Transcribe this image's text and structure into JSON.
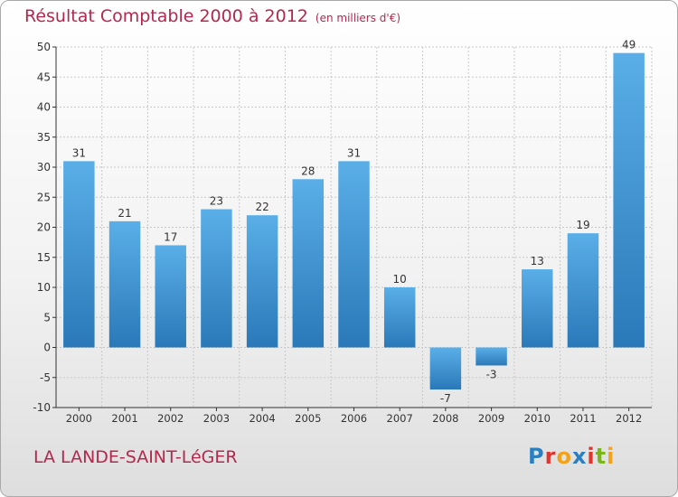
{
  "title": "Résultat Comptable 2000 à 2012",
  "subtitle": "(en milliers d'€)",
  "commune": "LA LANDE-SAINT-LéGER",
  "logo": {
    "text": "Proxiti",
    "colors": [
      "#2a7fc1",
      "#e2342d",
      "#f3a21b",
      "#2a7fc1",
      "#e2342d",
      "#7ab51d",
      "#f3a21b"
    ]
  },
  "colors": {
    "bar_light": "#5aafe8",
    "bar_dark": "#2a78b8",
    "title": "#b4284e",
    "axis": "#333333",
    "grid": "#c8c8c8"
  },
  "chart_data": {
    "type": "bar",
    "title": "Résultat Comptable 2000 à 2012",
    "subtitle": "(en milliers d'€)",
    "categories": [
      "2000",
      "2001",
      "2002",
      "2003",
      "2004",
      "2005",
      "2006",
      "2007",
      "2008",
      "2009",
      "2010",
      "2011",
      "2012"
    ],
    "values": [
      31,
      21,
      17,
      23,
      22,
      28,
      31,
      10,
      -7,
      -3,
      13,
      19,
      49
    ],
    "data_labels": [
      "31",
      "21",
      "17",
      "23",
      "22",
      "28",
      "31",
      "10",
      "-7",
      "-3",
      "13",
      "19",
      "49"
    ],
    "ylim": [
      -10,
      50
    ],
    "yticks": [
      -10,
      -5,
      0,
      5,
      10,
      15,
      20,
      25,
      30,
      35,
      40,
      45,
      50
    ],
    "grid": true,
    "legend": "none"
  }
}
